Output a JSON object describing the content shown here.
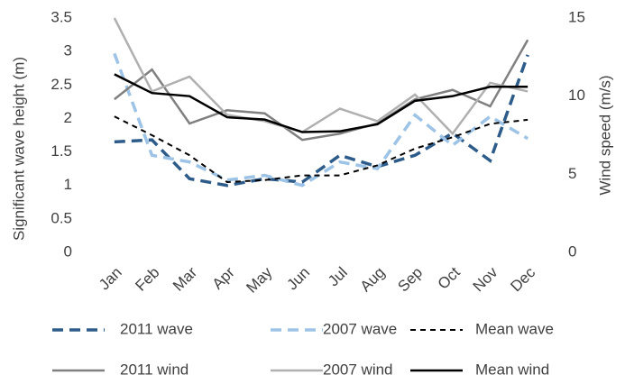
{
  "chart_data": {
    "type": "line",
    "ylabel": "Significant wave height (m)",
    "y2label": "Wind speed (m/s)",
    "categories": [
      "Jan",
      "Feb",
      "Mar",
      "Apr",
      "May",
      "Jun",
      "Jul",
      "Aug",
      "Sep",
      "Oct",
      "Nov",
      "Dec"
    ],
    "ylim": [
      0,
      3.5
    ],
    "yticks": [
      0,
      0.5,
      1,
      1.5,
      2,
      2.5,
      3,
      3.5
    ],
    "y2lim": [
      0,
      15
    ],
    "y2ticks": [
      0,
      5,
      10,
      15
    ],
    "grid": false,
    "legend": "bottom",
    "series": [
      {
        "name": "2011 wave",
        "color": "#2e5c8a",
        "dash": true,
        "values": [
          1.65,
          1.68,
          1.1,
          1.0,
          1.1,
          1.05,
          1.45,
          1.28,
          1.45,
          1.78,
          1.37,
          2.95
        ]
      },
      {
        "name": "2007 wave",
        "color": "#9dc3e6",
        "dash": true,
        "values": [
          2.97,
          1.45,
          1.35,
          1.08,
          1.15,
          1.0,
          1.35,
          1.25,
          2.05,
          1.6,
          2.03,
          1.7
        ]
      },
      {
        "name": "Mean wave",
        "color": "#000000",
        "dash": true,
        "values": [
          2.03,
          1.75,
          1.45,
          1.05,
          1.08,
          1.15,
          1.15,
          1.3,
          1.55,
          1.72,
          1.92,
          1.98
        ]
      },
      {
        "name": "2011 wind",
        "color": "#808080",
        "axis": "y2",
        "values": [
          9.8,
          11.7,
          8.25,
          9.1,
          8.9,
          7.2,
          7.6,
          8.25,
          9.8,
          10.4,
          9.35,
          13.6
        ]
      },
      {
        "name": "2007 wind",
        "color": "#b0b0b0",
        "axis": "y2",
        "values": [
          15,
          10.3,
          11.25,
          8.8,
          8.4,
          7.7,
          9.2,
          8.4,
          10.1,
          7.6,
          10.85,
          10.3
        ]
      },
      {
        "name": "Mean wind",
        "color": "#000000",
        "axis": "y2",
        "values": [
          11.4,
          10.2,
          10,
          8.65,
          8.5,
          7.7,
          7.75,
          8.2,
          9.7,
          10,
          10.6,
          10.6
        ]
      }
    ]
  }
}
